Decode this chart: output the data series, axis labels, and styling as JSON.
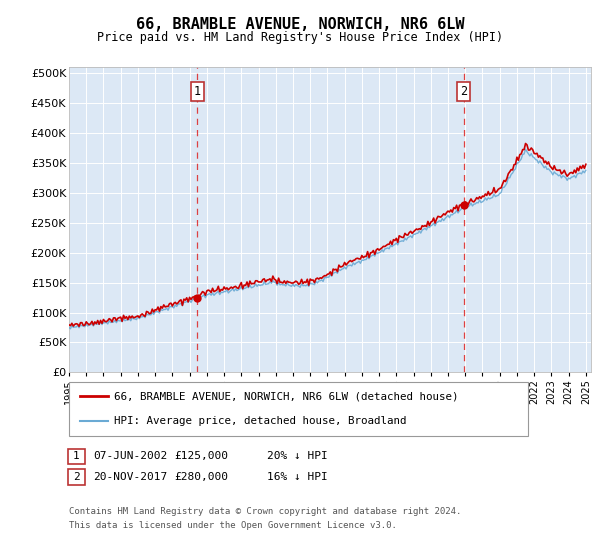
{
  "title": "66, BRAMBLE AVENUE, NORWICH, NR6 6LW",
  "subtitle": "Price paid vs. HM Land Registry's House Price Index (HPI)",
  "ytick_labels": [
    "£0",
    "£50K",
    "£100K",
    "£150K",
    "£200K",
    "£250K",
    "£300K",
    "£350K",
    "£400K",
    "£450K",
    "£500K"
  ],
  "yticks": [
    0,
    50000,
    100000,
    150000,
    200000,
    250000,
    300000,
    350000,
    400000,
    450000,
    500000
  ],
  "sale1_date": "07-JUN-2002",
  "sale1_price": 125000,
  "sale1_x": 2002.44,
  "sale1_pct": "20% ↓ HPI",
  "sale2_date": "20-NOV-2017",
  "sale2_price": 280000,
  "sale2_x": 2017.9,
  "sale2_pct": "16% ↓ HPI",
  "legend_line1": "66, BRAMBLE AVENUE, NORWICH, NR6 6LW (detached house)",
  "legend_line2": "HPI: Average price, detached house, Broadland",
  "footer1": "Contains HM Land Registry data © Crown copyright and database right 2024.",
  "footer2": "This data is licensed under the Open Government Licence v3.0.",
  "red_color": "#cc0000",
  "blue_color": "#6aaad4",
  "plot_bg_color": "#dce8f5",
  "box_edge_color": "#bb3333"
}
